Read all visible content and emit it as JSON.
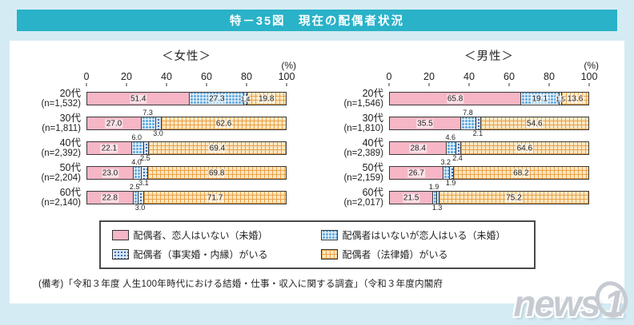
{
  "title_bar": {
    "title": "特－35図　現在の配偶者状況"
  },
  "note": "(備考)「令和３年度 人生100年時代における結婚・仕事・収入に関する調査」（令和３年度内閣府",
  "watermark": {
    "brand_prefix": "news",
    "brand_suffix": "1"
  },
  "colors": {
    "page_bg": "#d4ebf3",
    "titlebar_bg": "#29b2c8",
    "pink": "#f6b6c5",
    "blue_check": "#6fb0e0",
    "blue_dot_bg": "#dce9f7",
    "blue_dot": "#3f6fb5",
    "orange_bg": "#fbe7c0",
    "orange_line": "#e99e46",
    "bar_border": "#3a3a3a"
  },
  "legend": {
    "items": [
      {
        "label": "配偶者、恋人はいない（未婚）",
        "swatch": "pink-solid"
      },
      {
        "label": "配偶者はいないが恋人はいる（未婚）",
        "swatch": "blue-check"
      },
      {
        "label": "配偶者（事実婚・内縁）がいる",
        "swatch": "blue-dot"
      },
      {
        "label": "配偶者（法律婚）がいる",
        "swatch": "orange-check"
      }
    ]
  },
  "chart_data": [
    {
      "type": "bar",
      "orientation": "horizontal",
      "stacked": true,
      "title": "＜女性＞",
      "unit": "(%)",
      "xlim": [
        0,
        100
      ],
      "xticks": [
        0,
        20,
        40,
        60,
        80,
        100
      ],
      "categories": [
        {
          "age": "20代",
          "n": "(n=1,532)"
        },
        {
          "age": "30代",
          "n": "(n=1,811)"
        },
        {
          "age": "40代",
          "n": "(n=2,392)"
        },
        {
          "age": "50代",
          "n": "(n=2,204)"
        },
        {
          "age": "60代",
          "n": "(n=2,140)"
        }
      ],
      "series": [
        {
          "name": "配偶者、恋人はいない（未婚）",
          "values": [
            51.4,
            27.0,
            22.1,
            23.0,
            22.8
          ]
        },
        {
          "name": "配偶者はいないが恋人はいる（未婚）",
          "values": [
            27.3,
            7.3,
            6.0,
            4.0,
            2.5
          ]
        },
        {
          "name": "配偶者（事実婚・内縁）がいる",
          "values": [
            1.4,
            3.0,
            2.5,
            3.1,
            3.0
          ]
        },
        {
          "name": "配偶者（法律婚）がいる",
          "values": [
            19.8,
            62.6,
            69.4,
            69.8,
            71.7
          ]
        }
      ]
    },
    {
      "type": "bar",
      "orientation": "horizontal",
      "stacked": true,
      "title": "＜男性＞",
      "unit": "(%)",
      "xlim": [
        0,
        100
      ],
      "xticks": [
        0,
        20,
        40,
        60,
        80,
        100
      ],
      "categories": [
        {
          "age": "20代",
          "n": "(n=1,546)"
        },
        {
          "age": "30代",
          "n": "(n=1,810)"
        },
        {
          "age": "40代",
          "n": "(n=2,389)"
        },
        {
          "age": "50代",
          "n": "(n=2,159)"
        },
        {
          "age": "60代",
          "n": "(n=2,017)"
        }
      ],
      "series": [
        {
          "name": "配偶者、恋人はいない（未婚）",
          "values": [
            65.8,
            35.5,
            28.4,
            26.7,
            21.5
          ]
        },
        {
          "name": "配偶者はいないが恋人はいる（未婚）",
          "values": [
            19.1,
            7.8,
            4.6,
            3.2,
            1.9
          ]
        },
        {
          "name": "配偶者（事実婚・内縁）がいる",
          "values": [
            1.5,
            2.1,
            2.4,
            1.9,
            1.3
          ]
        },
        {
          "name": "配偶者（法律婚）がいる",
          "values": [
            13.6,
            54.6,
            64.6,
            68.2,
            75.2
          ]
        }
      ]
    }
  ]
}
